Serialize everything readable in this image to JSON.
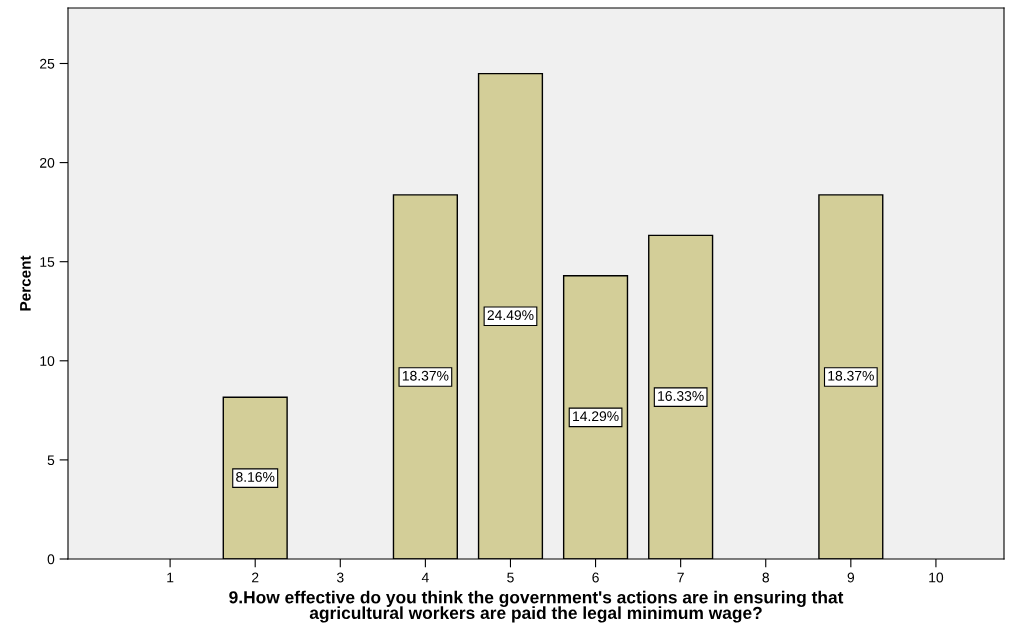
{
  "chart_data": {
    "type": "bar",
    "xlabel": "9.How effective do you think the government's actions are in ensuring that\nagricultural workers are paid the legal minimum wage?",
    "ylabel": "Percent",
    "categories": [
      "1",
      "2",
      "3",
      "4",
      "5",
      "6",
      "7",
      "8",
      "9",
      "10"
    ],
    "values": [
      null,
      8.16,
      null,
      18.37,
      24.49,
      14.29,
      16.33,
      null,
      18.37,
      null
    ],
    "value_labels": [
      null,
      "8.16%",
      null,
      "18.37%",
      "24.49%",
      "14.29%",
      "16.33%",
      null,
      "18.37%",
      null
    ],
    "color": "#d3ce98",
    "ylim": [
      0,
      27.8
    ],
    "yticks": [
      0,
      5,
      10,
      15,
      20,
      25
    ],
    "grid": false,
    "legend": false
  }
}
